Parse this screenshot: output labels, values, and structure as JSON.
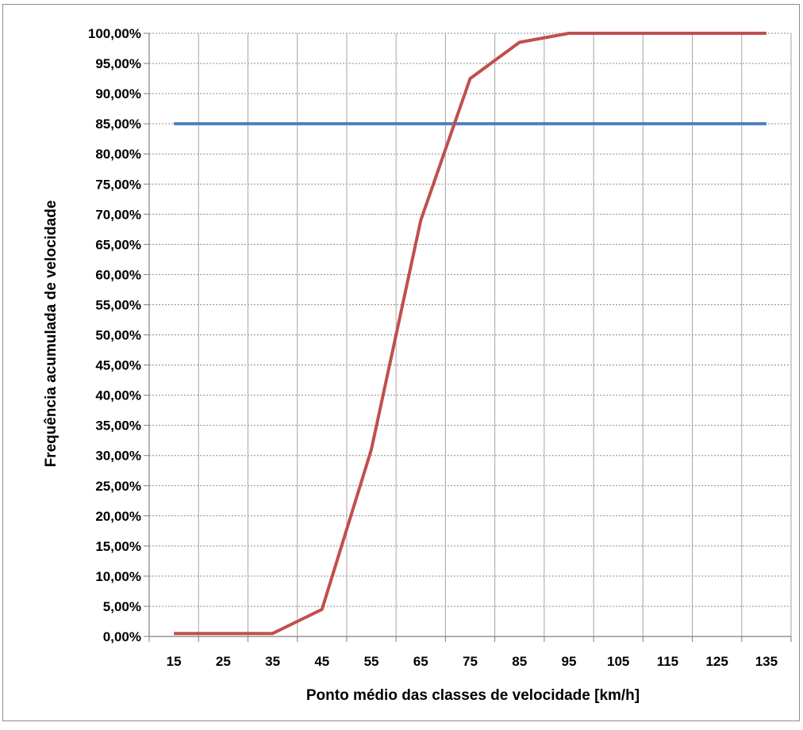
{
  "chart_data": {
    "type": "line",
    "title": "",
    "xlabel": "Ponto médio das classes de velocidade [km/h]",
    "ylabel": "Frequência acumulada de velocidade",
    "x": [
      15,
      25,
      35,
      45,
      55,
      65,
      75,
      85,
      95,
      105,
      115,
      125,
      135
    ],
    "x_tick_labels": [
      "15",
      "25",
      "35",
      "45",
      "55",
      "65",
      "75",
      "85",
      "95",
      "105",
      "115",
      "125",
      "135"
    ],
    "y_tick_labels": [
      "0,00%",
      "5,00%",
      "10,00%",
      "15,00%",
      "20,00%",
      "25,00%",
      "30,00%",
      "35,00%",
      "40,00%",
      "45,00%",
      "50,00%",
      "55,00%",
      "60,00%",
      "65,00%",
      "70,00%",
      "75,00%",
      "80,00%",
      "85,00%",
      "90,00%",
      "95,00%",
      "100,00%"
    ],
    "ylim": [
      0,
      100
    ],
    "y_unit": "%",
    "grid": true,
    "legend": "none",
    "series": [
      {
        "color": "#c0504d",
        "values": [
          0.5,
          0.5,
          0.5,
          4.5,
          31,
          69,
          92.5,
          98.5,
          100,
          100,
          100,
          100,
          100
        ]
      },
      {
        "color": "#4f81bd",
        "values": [
          85,
          85,
          85,
          85,
          85,
          85,
          85,
          85,
          85,
          85,
          85,
          85,
          85
        ]
      }
    ]
  }
}
